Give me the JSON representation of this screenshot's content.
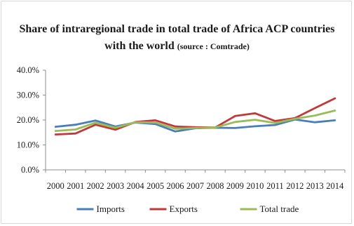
{
  "chart_data": {
    "type": "line",
    "title_line1": "Share of intraregional trade in total trade of Africa ACP countries",
    "title_line2": "with the world",
    "title_source": "(source : Comtrade)",
    "xlabel": "",
    "ylabel": "",
    "categories": [
      "2000",
      "2001",
      "2002",
      "2003",
      "2004",
      "2005",
      "2006",
      "2007",
      "2008",
      "2009",
      "2010",
      "2011",
      "2012",
      "2013",
      "2014"
    ],
    "ylim": [
      0,
      40
    ],
    "yticks": [
      "0.0%",
      "10.0%",
      "20.0%",
      "30.0%",
      "40.0%"
    ],
    "grid": false,
    "legend_position": "bottom",
    "series": [
      {
        "name": "Imports",
        "color": "#4a7ebb",
        "values": [
          17.3,
          18.1,
          19.8,
          17.4,
          19.0,
          18.4,
          15.4,
          16.7,
          16.9,
          16.8,
          17.5,
          18.0,
          20.2,
          19.1,
          19.9
        ]
      },
      {
        "name": "Exports",
        "color": "#c0393b",
        "values": [
          14.2,
          14.6,
          18.1,
          16.1,
          19.2,
          19.9,
          17.4,
          17.1,
          17.0,
          21.6,
          22.7,
          19.6,
          20.8,
          24.8,
          28.7
        ]
      },
      {
        "name": "Total trade",
        "color": "#9bbb59",
        "values": [
          15.6,
          16.2,
          18.9,
          16.9,
          19.1,
          19.0,
          16.5,
          16.8,
          17.0,
          19.2,
          20.1,
          18.8,
          20.5,
          21.8,
          23.8
        ]
      }
    ]
  }
}
